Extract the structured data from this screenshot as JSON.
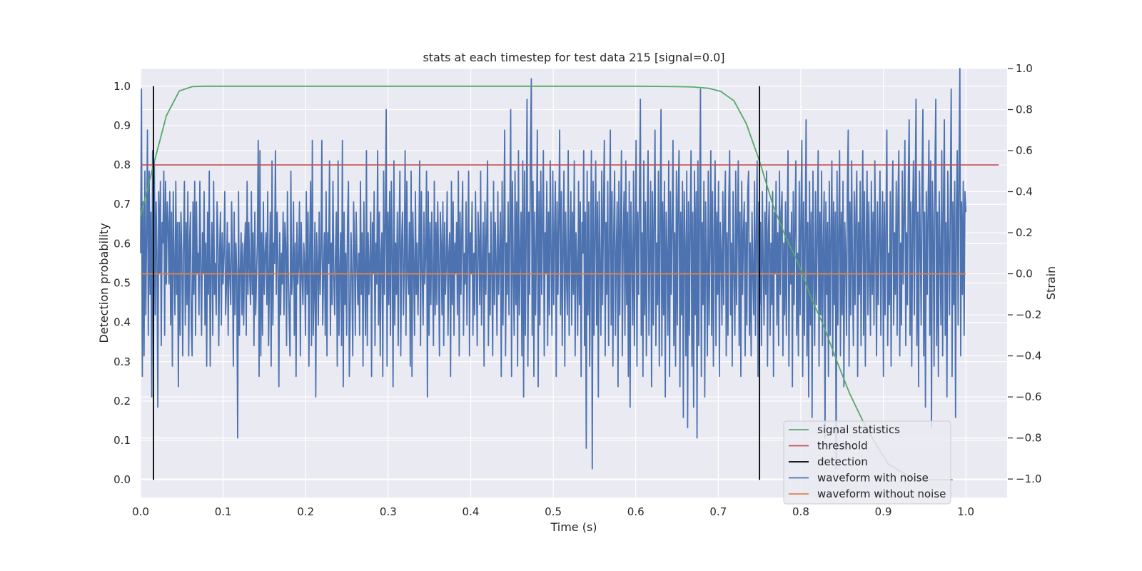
{
  "chart_data": {
    "type": "line",
    "title": "stats at each timestep for test data 215 [signal=0.0]",
    "xlabel": "Time (s)",
    "ylabel_left": "Detection probability",
    "ylabel_right": "Strain",
    "xlim": [
      0.0,
      1.05
    ],
    "ylim_left": [
      -0.045,
      1.045
    ],
    "ylim_right": [
      -1.09,
      1.0
    ],
    "x_ticks": [
      "0.0",
      "0.1",
      "0.2",
      "0.3",
      "0.4",
      "0.5",
      "0.6",
      "0.7",
      "0.8",
      "0.9",
      "1.0"
    ],
    "y_left_ticks": [
      "0.0",
      "0.1",
      "0.2",
      "0.3",
      "0.4",
      "0.5",
      "0.6",
      "0.7",
      "0.8",
      "0.9",
      "1.0"
    ],
    "y_right_ticks": [
      "−1.0",
      "−0.8",
      "−0.6",
      "−0.4",
      "−0.2",
      "0.0",
      "0.2",
      "0.4",
      "0.6",
      "0.8",
      "1.0"
    ],
    "grid": true,
    "legend_position": "lower-right",
    "series": [
      {
        "name": "signal statistics",
        "color": "#55a868",
        "axis": "left",
        "x": [
          0.0,
          0.0156,
          0.0312,
          0.0469,
          0.0625,
          0.0781,
          0.1,
          0.2,
          0.3,
          0.4,
          0.5,
          0.6,
          0.65,
          0.67,
          0.688,
          0.703,
          0.719,
          0.734,
          0.75,
          0.766,
          0.781,
          0.797,
          0.813,
          0.828,
          0.844,
          0.859,
          0.875,
          0.891,
          0.906,
          0.922,
          0.938,
          0.953,
          0.969,
          0.984
        ],
        "y": [
          0.67,
          0.8,
          0.925,
          0.988,
          0.999,
          1.0,
          1.0,
          1.0,
          1.0,
          1.0,
          1.0,
          1.0,
          0.999,
          0.998,
          0.995,
          0.987,
          0.963,
          0.905,
          0.81,
          0.7,
          0.62,
          0.55,
          0.46,
          0.39,
          0.3,
          0.22,
          0.15,
          0.09,
          0.04,
          0.02,
          0.0,
          0.0,
          0.0,
          0.0
        ]
      },
      {
        "name": "threshold",
        "color": "#c44e52",
        "axis": "left",
        "x": [
          0.0,
          1.04
        ],
        "y": [
          0.8,
          0.8
        ]
      },
      {
        "name": "detection",
        "color": "#000000",
        "axis": "left",
        "segments": [
          {
            "x": 0.0156,
            "y": [
              0.0,
              1.0
            ]
          },
          {
            "x": 0.75,
            "y": [
              0.0,
              1.0
            ]
          }
        ]
      },
      {
        "name": "waveform with noise",
        "color": "#4c72b0",
        "axis": "right",
        "x_range": [
          0.0,
          1.0
        ],
        "y": [
          0.1,
          0.9,
          -0.5,
          0.35,
          -0.4,
          0.5,
          -0.2,
          0.2,
          0.7,
          -0.3,
          0.5,
          -0.1,
          0.3,
          -0.6,
          0.6,
          -0.45,
          0.55,
          -0.2,
          0.35,
          0.1,
          -0.65,
          0.4,
          0.0,
          0.45,
          -0.35,
          0.25,
          0.15,
          0.5,
          -0.3,
          0.45,
          -0.05,
          0.35,
          0.25,
          -0.05,
          0.4,
          -0.25,
          0.3,
          -0.45,
          0.4,
          0.05,
          -0.2,
          0.45,
          -0.1,
          0.25,
          -0.55,
          0.25,
          -0.3,
          0.3,
          0.1,
          -0.4,
          0.15,
          0.45,
          -0.25,
          0.25,
          -0.15,
          0.4,
          -0.4,
          0.15,
          0.3,
          -0.25,
          -0.4,
          0.35,
          -0.1,
          0.45,
          -0.3,
          0.35,
          0.0,
          0.1,
          -0.2,
          0.45,
          0.05,
          -0.3,
          0.2,
          0.0,
          0.4,
          -0.25,
          0.15,
          -0.45,
          0.3,
          -0.1,
          0.5,
          -0.45,
          0.05,
          0.25,
          -0.3,
          0.45,
          -0.1,
          0.05,
          -0.2,
          0.35,
          0.2,
          -0.35,
          0.1,
          0.3,
          -0.25,
          0.2,
          -0.05,
          0.1,
          0.4,
          -0.2,
          -0.05,
          0.25,
          -0.3,
          0.15,
          0.0,
          -0.15,
          0.35,
          0.05,
          -0.45,
          0.3,
          -0.2,
          0.15,
          0.0,
          -0.8,
          0.4,
          -0.3,
          0.0,
          0.2,
          -0.2,
          0.15,
          -0.25,
          0.1,
          0.25,
          -0.3,
          0.45,
          -0.1,
          0.25,
          0.0,
          -0.15,
          0.4,
          -0.1,
          0.2,
          -0.35,
          0.3,
          -0.2,
          0.0,
          0.15,
          0.65,
          -0.5,
          0.6,
          -0.4,
          0.2,
          -0.3,
          0.35,
          -0.1,
          0.1,
          0.2,
          -0.15,
          0.4,
          -0.35,
          0.0,
          0.3,
          -0.45,
          0.55,
          -0.25,
          0.15,
          0.05,
          0.6,
          -0.1,
          0.3,
          0.05,
          -0.55,
          0.2,
          -0.2,
          0.1,
          -0.05,
          0.3,
          -0.2,
          0.25,
          0.15,
          -0.35,
          0.4,
          0.0,
          -0.2,
          -0.4,
          0.5,
          -0.1,
          0.0,
          0.35,
          -0.3,
          0.15,
          -0.5,
          0.25,
          -0.05,
          0.05,
          0.35,
          -0.4,
          0.25,
          0.0,
          -0.15,
          0.15,
          0.05,
          -0.3,
          0.4,
          -0.1,
          0.3,
          -0.45,
          0.15,
          0.45,
          -0.35,
          0.65,
          -0.3,
          -0.1,
          0.25,
          -0.6,
          0.2,
          0.05,
          -0.25,
          0.3,
          -0.1,
          0.1,
          0.65,
          -0.25,
          0.0,
          0.2,
          -0.3,
          0.4,
          -0.4,
          0.2,
          0.05,
          0.55,
          -0.3,
          0.15,
          -0.15,
          0.45,
          0.0,
          -0.2,
          0.1,
          0.3,
          -0.45,
          0.55,
          -0.3,
          0.0,
          0.2,
          -0.35,
          0.65,
          -0.55,
          0.3,
          -0.15,
          0.1,
          -0.3,
          0.25,
          0.45,
          -0.5,
          -0.2,
          0.2,
          0.0,
          -0.4,
          0.35,
          0.15,
          -0.3,
          0.3,
          0.05,
          -0.15,
          0.1,
          -0.3,
          0.45,
          -0.1,
          0.2,
          -0.45,
          0.35,
          0.0,
          -0.3,
          0.6,
          -0.35,
          0.2,
          -0.1,
          0.05,
          0.3,
          -0.5,
          0.25,
          0.0,
          0.4,
          -0.35,
          0.15,
          -0.05,
          0.6,
          -0.25,
          0.3,
          -0.4,
          0.1,
          0.2,
          -0.5,
          0.5,
          -0.1,
          0.25,
          0.8,
          -0.45,
          0.3,
          -0.15,
          0.4,
          -0.3,
          0.45,
          0.1,
          -0.55,
          0.55,
          -0.25,
          0.15,
          -0.1,
          0.3,
          -0.35,
          0.2,
          0.5,
          -0.4,
          0.15,
          0.3,
          -0.2,
          0.05,
          0.6,
          -0.3,
          0.45,
          0.0,
          -0.1,
          0.25,
          -0.45,
          0.5,
          -0.5,
          0.3,
          0.05,
          -0.3,
          0.4,
          -0.1,
          0.15,
          -0.2,
          0.1,
          0.55,
          -0.35,
          0.4,
          0.0,
          -0.25,
          0.3,
          -0.05,
          0.1,
          0.5,
          -0.6,
          0.4,
          -0.3,
          0.25,
          -0.15,
          0.3,
          0.0,
          -0.35,
          0.45,
          -0.2,
          0.25,
          -0.15,
          0.35,
          0.05,
          -0.4,
          0.3,
          0.15,
          -0.2,
          0.35,
          -0.35,
          0.25,
          -0.1,
          0.05,
          0.4,
          -0.3,
          0.1,
          0.2,
          -0.5,
          0.45,
          -0.15,
          0.35,
          -0.3,
          0.15,
          0.0,
          0.25,
          -0.2,
          0.5,
          -0.4,
          0.3,
          -0.1,
          0.2,
          0.45,
          -0.3,
          0.1,
          -0.05,
          0.35,
          -0.25,
          0.15,
          0.5,
          -0.4,
          0.2,
          0.0,
          0.35,
          -0.3,
          0.1,
          -0.2,
          0.4,
          0.05,
          -0.35,
          0.3,
          0.15,
          -0.15,
          0.5,
          -0.25,
          0.05,
          0.25,
          -0.45,
          0.35,
          -0.1,
          0.2,
          0.55,
          -0.35,
          0.1,
          -0.2,
          0.3,
          0.0,
          -0.4,
          0.45,
          -0.15,
          0.25,
          0.05,
          -0.3,
          0.4,
          -0.1,
          0.1,
          0.3,
          -0.5,
          0.45,
          -0.25,
          0.2,
          0.7,
          -0.4,
          0.15,
          -0.1,
          0.35,
          -0.2,
          0.25,
          0.8,
          -0.5,
          0.45,
          0.0,
          -0.3,
          0.5,
          -0.15,
          0.35,
          -0.45,
          0.6,
          -0.2,
          0.1,
          0.3,
          -0.4,
          0.55,
          -0.6,
          0.5,
          -0.3,
          0.2,
          0.85,
          -0.45,
          0.3,
          -0.1,
          0.6,
          0.95,
          -0.3,
          0.45,
          -0.5,
          0.3,
          -0.2,
          0.15,
          0.7,
          -0.55,
          0.4,
          -0.25,
          0.5,
          -0.1,
          0.25,
          0.6,
          -0.4,
          0.2,
          0.0,
          0.45,
          -0.35,
          0.3,
          -0.2,
          0.55,
          0.1,
          -0.3,
          0.5,
          -0.15,
          0.2,
          0.45,
          -0.5,
          0.35,
          -0.1,
          0.25,
          0.7,
          -0.2,
          0.4,
          -0.35,
          0.15,
          0.5,
          -0.45,
          0.3,
          0.0,
          -0.2,
          0.6,
          -0.3,
          0.15,
          0.4,
          -0.25,
          0.3,
          -0.1,
          0.55,
          -0.4,
          0.2,
          0.05,
          -0.3,
          0.45,
          -0.15,
          0.35,
          -0.5,
          0.25,
          0.1,
          0.6,
          -0.35,
          0.3,
          -0.85,
          0.5,
          -0.2,
          0.35,
          -0.45,
          0.15,
          0.6,
          -0.95,
          0.45,
          -0.3,
          0.2,
          0.55,
          -0.25,
          0.35,
          -0.6,
          0.4,
          0.05,
          -0.3,
          0.5,
          -0.15,
          0.3,
          0.65,
          -0.4,
          0.25,
          -0.1,
          0.45,
          -0.35,
          0.15,
          0.7,
          -0.25,
          0.4,
          -0.45,
          0.2,
          0.5,
          -0.3,
          0.1,
          0.35,
          -0.55,
          0.45,
          -0.2,
          0.25,
          0.6,
          -0.4,
          0.15,
          0.4,
          -0.3,
          0.55,
          -0.15,
          0.3,
          -0.5,
          0.45,
          -0.65,
          0.35,
          0.1,
          -0.25,
          0.5,
          -0.35,
          0.2,
          0.65,
          -0.45,
          0.3,
          -0.1,
          0.4,
          0.85,
          -0.3,
          0.2,
          -0.5,
          0.55,
          -0.2,
          0.35,
          -0.4,
          0.25,
          0.6,
          -0.3,
          0.1,
          0.45,
          -0.55,
          0.4,
          -0.25,
          0.3,
          0.7,
          -0.35,
          0.15,
          -0.15,
          0.5,
          -0.45,
          0.25,
          0.8,
          -0.4,
          0.35,
          -0.2,
          0.45,
          -0.6,
          0.3,
          0.1,
          -0.3,
          0.55,
          -0.5,
          0.4,
          -0.1,
          0.25,
          0.65,
          -0.35,
          0.2,
          -0.45,
          0.5,
          -0.25,
          0.35,
          0.6,
          -0.55,
          0.3,
          -0.2,
          0.45,
          -0.7,
          0.4,
          0.15,
          -0.4,
          0.5,
          -0.75,
          0.35,
          -0.3,
          0.25,
          0.6,
          -0.45,
          0.3,
          -0.65,
          0.5,
          -0.2,
          0.4,
          -0.8,
          0.55,
          -0.35,
          0.3,
          0.9,
          -0.5,
          0.25,
          -0.15,
          0.45,
          -0.6,
          0.35,
          0.05,
          -0.4,
          0.5,
          -0.25,
          0.15,
          0.6,
          -0.3,
          0.4,
          -0.45,
          0.2,
          0.55,
          -0.35,
          0.3,
          -0.1,
          0.45,
          -0.5,
          0.25,
          0.1,
          -0.25,
          0.4,
          -0.15,
          0.3,
          0.5,
          -0.4,
          0.2,
          -0.3,
          0.35,
          0.6,
          -0.2,
          0.15,
          -0.45,
          0.4,
          0.0,
          -0.3,
          0.5,
          -0.15,
          0.25,
          0.55,
          -0.35,
          0.3,
          -0.5,
          0.45,
          -0.1,
          0.2,
          0.35,
          -0.4,
          0.25,
          -0.25,
          0.4,
          0.5,
          -0.3,
          0.15,
          -0.4,
          0.3,
          0.0,
          -0.2,
          0.45,
          -0.3,
          0.2,
          0.55,
          -0.5,
          0.35,
          -0.15,
          0.25,
          -0.35,
          0.4,
          0.05,
          -0.25,
          0.3,
          -0.1,
          0.5,
          -0.45,
          0.2,
          0.35,
          -0.3,
          0.15,
          -0.15,
          0.4,
          -0.5,
          0.3,
          0.0,
          0.45,
          -0.25,
          0.2,
          -0.35,
          0.5,
          -0.1,
          0.3,
          0.4,
          -0.4,
          0.15,
          -0.2,
          0.35,
          -0.3,
          0.25,
          0.6,
          -0.45,
          0.2,
          -0.05,
          0.3,
          -0.55,
          0.4,
          -0.15,
          0.25,
          0.55,
          -0.3,
          0.1,
          -0.4,
          0.45,
          -0.2,
          0.3,
          0.65,
          -0.5,
          0.35,
          -0.3,
          0.2,
          0.75,
          -0.4,
          0.25,
          -0.6,
          0.45,
          -0.25,
          0.3,
          -0.7,
          0.5,
          0.05,
          -0.35,
          0.4,
          -0.15,
          0.2,
          0.6,
          -0.45,
          0.3,
          -0.2,
          0.5,
          -0.35,
          0.15,
          0.4,
          -0.8,
          0.35,
          -0.1,
          0.25,
          -0.5,
          0.45,
          -0.3,
          0.2,
          0.55,
          -0.4,
          0.35,
          -0.15,
          0.3,
          -0.95,
          0.5,
          -0.25,
          0.2,
          0.6,
          -0.4,
          0.3,
          -0.2,
          0.45,
          -0.55,
          0.25,
          0.1,
          -0.3,
          0.4,
          0.7,
          -0.45,
          0.35,
          -0.2,
          0.55,
          0.0,
          -0.35,
          0.4,
          -0.15,
          0.3,
          0.5,
          -0.5,
          0.25,
          -0.1,
          0.45,
          -0.35,
          0.2,
          0.6,
          -0.3,
          0.4,
          -0.45,
          0.15,
          0.5,
          -0.2,
          0.35,
          0.0,
          -0.3,
          0.45,
          -0.1,
          0.3,
          -0.25,
          0.55,
          0.1,
          -0.4,
          0.35,
          -0.15,
          0.2,
          0.5,
          -0.3,
          0.15,
          0.4,
          -0.5,
          0.35,
          -0.2,
          0.25,
          0.7,
          -0.35,
          0.1,
          -0.15,
          0.4,
          -0.45,
          0.3,
          0.55,
          -0.25,
          0.2,
          -0.1,
          0.45,
          -0.3,
          0.35,
          0.6,
          -0.4,
          0.15,
          -0.25,
          0.5,
          -0.05,
          0.3,
          0.65,
          -0.35,
          0.2,
          -0.15,
          0.45,
          0.75,
          -0.3,
          0.35,
          -0.45,
          0.25,
          0.55,
          -0.2,
          0.4,
          0.85,
          -0.35,
          0.3,
          -0.55,
          0.5,
          0.15,
          -0.25,
          0.45,
          0.8,
          -0.4,
          0.3,
          -0.65,
          0.4,
          -0.1,
          0.35,
          0.65,
          -0.3,
          0.55,
          -0.75,
          0.45,
          0.2,
          -0.45,
          0.5,
          0.85,
          -0.35,
          0.3,
          -0.5,
          0.4,
          0.1,
          -0.25,
          0.6,
          -0.4,
          0.35,
          0.75,
          -0.3,
          0.25,
          -0.6,
          0.5,
          0.15,
          -0.2,
          0.4,
          0.9,
          -0.5,
          0.35,
          -0.15,
          0.45,
          -0.7,
          0.3,
          0.6,
          -0.25,
          0.5,
          1.0,
          -0.4,
          0.35,
          -0.1,
          0.45,
          -0.3,
          0.4,
          0.3
        ]
      },
      {
        "name": "waveform without noise",
        "color": "#dd8452",
        "axis": "right",
        "x": [
          0.0,
          1.0
        ],
        "y": [
          0.0,
          0.0
        ]
      }
    ]
  }
}
